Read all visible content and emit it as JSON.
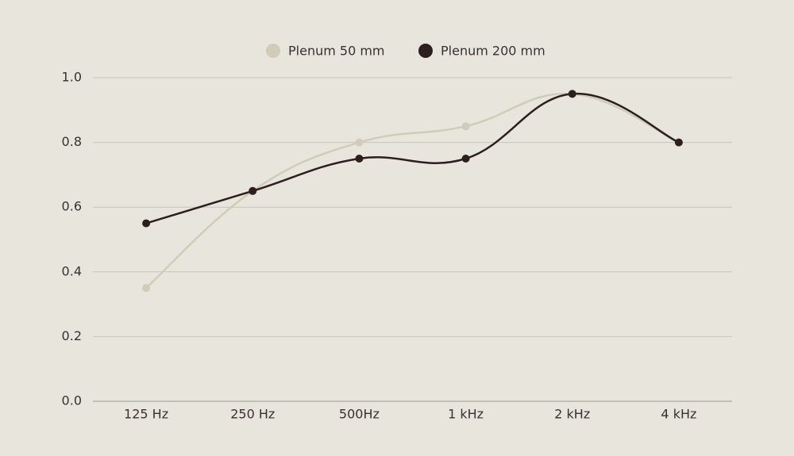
{
  "chart_data": {
    "type": "line",
    "categories": [
      "125 Hz",
      "250 Hz",
      "500Hz",
      "1 kHz",
      "2 kHz",
      "4 kHz"
    ],
    "series": [
      {
        "name": "Plenum 50 mm",
        "color": "#d1ccba",
        "values": [
          0.35,
          0.65,
          0.8,
          0.85,
          0.95,
          0.8
        ]
      },
      {
        "name": "Plenum 200 mm",
        "color": "#2e1f1f",
        "values": [
          0.55,
          0.65,
          0.75,
          0.75,
          0.95,
          0.8
        ]
      }
    ],
    "ylim": [
      0,
      1
    ],
    "yticks": [
      {
        "value": 0,
        "label": "0.0"
      },
      0.2,
      0.4,
      0.6,
      0.8,
      {
        "value": 1,
        "label": "1.0"
      }
    ],
    "grid": true,
    "legend": "top",
    "smooth": true
  }
}
